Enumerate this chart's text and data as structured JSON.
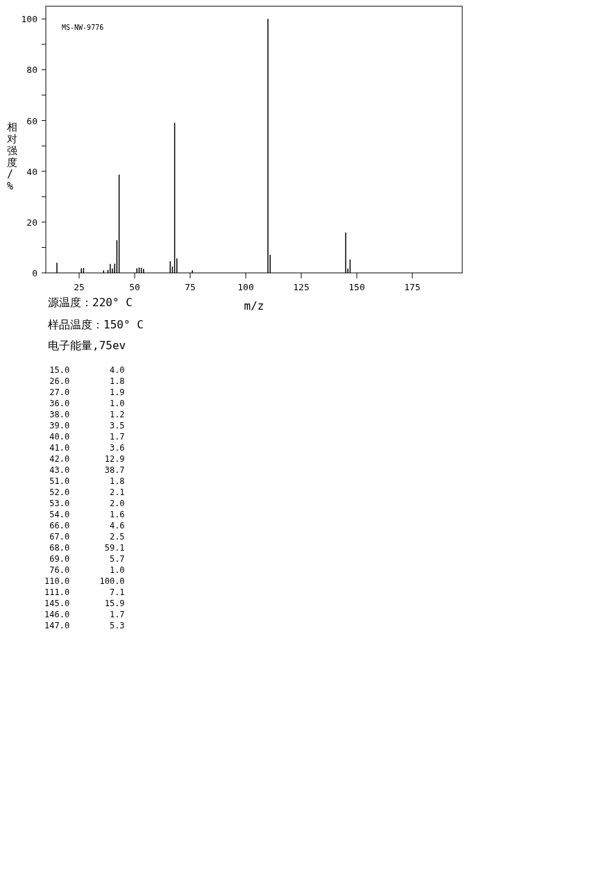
{
  "chart_data": {
    "type": "bar",
    "xlabel": "m/z",
    "ylabel": "相对强度/%",
    "x": [
      15,
      26,
      27,
      36,
      38,
      39,
      40,
      41,
      42,
      43,
      51,
      52,
      53,
      54,
      66,
      67,
      68,
      69,
      76,
      110,
      111,
      145,
      146,
      147
    ],
    "values": [
      4.0,
      1.8,
      1.9,
      1.0,
      1.2,
      3.5,
      1.7,
      3.6,
      12.9,
      38.7,
      1.8,
      2.1,
      2.0,
      1.6,
      4.6,
      2.5,
      59.1,
      5.7,
      1.0,
      100.0,
      7.1,
      15.9,
      1.7,
      5.3
    ],
    "color": "#000000",
    "xlim": [
      10,
      197.5
    ],
    "ylim": [
      0,
      105
    ],
    "xticks": [
      25,
      50,
      75,
      100,
      125,
      150,
      175
    ],
    "yticks": [
      0,
      {
        "value": 10,
        "label": null
      },
      20,
      {
        "value": 30,
        "label": null
      },
      40,
      {
        "value": 50,
        "label": null
      },
      60,
      {
        "value": 70,
        "label": null
      },
      80,
      {
        "value": 90,
        "label": null
      },
      100
    ],
    "annotations": [
      "MS-NW-9776",
      "源温度：220° C",
      "样品温度：150° C",
      "电子能量,75ev",
      " 15.0        4.0",
      " 26.0        1.8",
      " 27.0        1.9",
      " 36.0        1.0",
      " 38.0        1.2",
      " 39.0        3.5",
      " 40.0        1.7",
      " 41.0        3.6",
      " 42.0       12.9",
      " 43.0       38.7",
      " 51.0        1.8",
      " 52.0        2.1",
      " 53.0        2.0",
      " 54.0        1.6",
      " 66.0        4.6",
      " 67.0        2.5",
      " 68.0       59.1",
      " 69.0        5.7",
      " 76.0        1.0",
      "110.0      100.0",
      "111.0        7.1",
      "145.0       15.9",
      "146.0        1.7",
      "147.0        5.3"
    ]
  }
}
